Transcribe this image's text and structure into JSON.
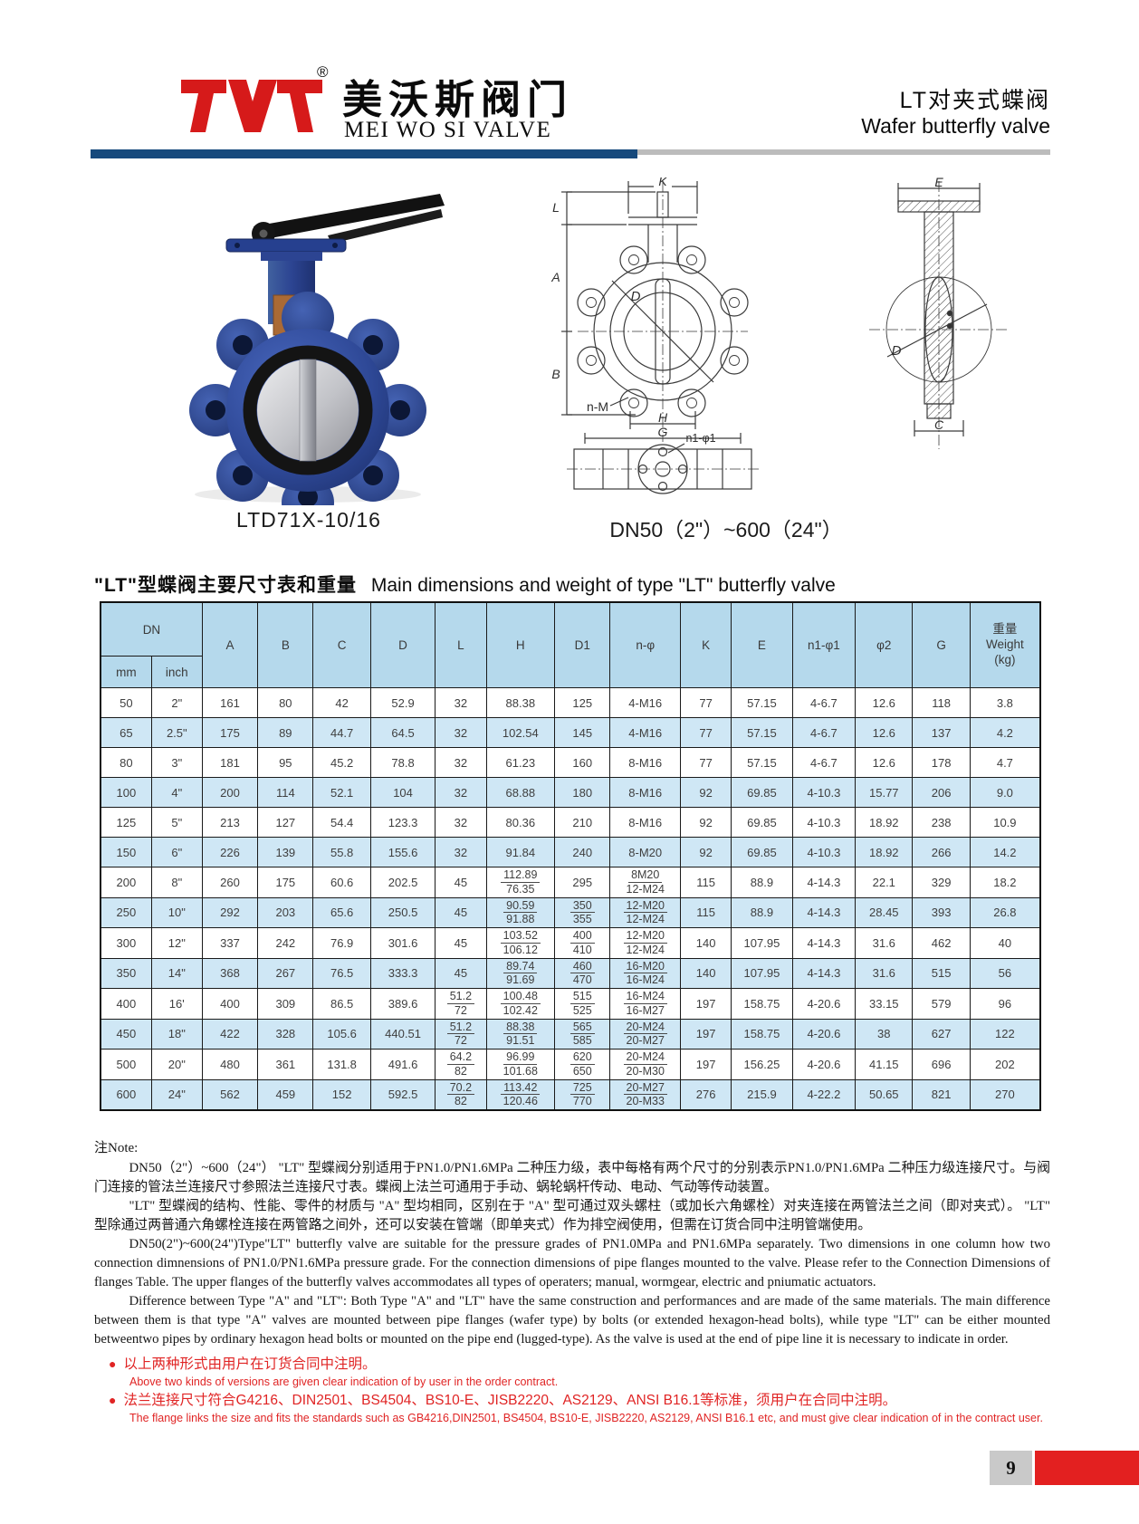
{
  "header": {
    "logo_reg": "®",
    "logo_cn": "美沃斯阀门",
    "logo_en": "MEI WO SI VALVE",
    "product_cn": "LT对夹式蝶阀",
    "product_en": "Wafer butterfly valve",
    "accent_blue": "#16497c",
    "accent_red": "#d61a1a"
  },
  "figures": {
    "photo_caption": "LTD71X-10/16",
    "drawing_caption": "DN50（2\"）~600（24\"）",
    "drawing_labels": {
      "K": "K",
      "L": "L",
      "A": "A",
      "B": "B",
      "D_front": "D",
      "nM": "n-M",
      "H": "H",
      "G": "G",
      "n1phi1": "n1-φ1",
      "E": "E",
      "D_side": "D",
      "C": "C"
    }
  },
  "table": {
    "title_cn": "\"LT\"型蝶阀主要尺寸表和重量",
    "title_en": "Main dimensions and weight of  type \"LT\" butterfly valve",
    "dn_label": "DN",
    "sub_columns": [
      "mm",
      "inch"
    ],
    "columns": [
      "A",
      "B",
      "C",
      "D",
      "L",
      "H",
      "D1",
      "n-φ",
      "K",
      "E",
      "n1-φ1",
      "φ2",
      "G"
    ],
    "weight_lines": [
      "重量",
      "Weight",
      "(kg)"
    ],
    "rows": [
      [
        "50",
        "2\"",
        "161",
        "80",
        "42",
        "52.9",
        "32",
        "88.38",
        "125",
        "4-M16",
        "77",
        "57.15",
        "4-6.7",
        "12.6",
        "118",
        "3.8"
      ],
      [
        "65",
        "2.5\"",
        "175",
        "89",
        "44.7",
        "64.5",
        "32",
        "102.54",
        "145",
        "4-M16",
        "77",
        "57.15",
        "4-6.7",
        "12.6",
        "137",
        "4.2"
      ],
      [
        "80",
        "3\"",
        "181",
        "95",
        "45.2",
        "78.8",
        "32",
        "61.23",
        "160",
        "8-M16",
        "77",
        "57.15",
        "4-6.7",
        "12.6",
        "178",
        "4.7"
      ],
      [
        "100",
        "4\"",
        "200",
        "114",
        "52.1",
        "104",
        "32",
        "68.88",
        "180",
        "8-M16",
        "92",
        "69.85",
        "4-10.3",
        "15.77",
        "206",
        "9.0"
      ],
      [
        "125",
        "5\"",
        "213",
        "127",
        "54.4",
        "123.3",
        "32",
        "80.36",
        "210",
        "8-M16",
        "92",
        "69.85",
        "4-10.3",
        "18.92",
        "238",
        "10.9"
      ],
      [
        "150",
        "6\"",
        "226",
        "139",
        "55.8",
        "155.6",
        "32",
        "91.84",
        "240",
        "8-M20",
        "92",
        "69.85",
        "4-10.3",
        "18.92",
        "266",
        "14.2"
      ],
      [
        "200",
        "8\"",
        "260",
        "175",
        "60.6",
        "202.5",
        "45",
        [
          "112.89",
          "76.35"
        ],
        "295",
        [
          "8M20",
          "12-M24"
        ],
        "115",
        "88.9",
        "4-14.3",
        "22.1",
        "329",
        "18.2"
      ],
      [
        "250",
        "10\"",
        "292",
        "203",
        "65.6",
        "250.5",
        "45",
        [
          "90.59",
          "91.88"
        ],
        [
          "350",
          "355"
        ],
        [
          "12-M20",
          "12-M24"
        ],
        "115",
        "88.9",
        "4-14.3",
        "28.45",
        "393",
        "26.8"
      ],
      [
        "300",
        "12\"",
        "337",
        "242",
        "76.9",
        "301.6",
        "45",
        [
          "103.52",
          "106.12"
        ],
        [
          "400",
          "410"
        ],
        [
          "12-M20",
          "12-M24"
        ],
        "140",
        "107.95",
        "4-14.3",
        "31.6",
        "462",
        "40"
      ],
      [
        "350",
        "14\"",
        "368",
        "267",
        "76.5",
        "333.3",
        "45",
        [
          "89.74",
          "91.69"
        ],
        [
          "460",
          "470"
        ],
        [
          "16-M20",
          "16-M24"
        ],
        "140",
        "107.95",
        "4-14.3",
        "31.6",
        "515",
        "56"
      ],
      [
        "400",
        "16'",
        "400",
        "309",
        "86.5",
        "389.6",
        [
          "51.2",
          "72"
        ],
        [
          "100.48",
          "102.42"
        ],
        [
          "515",
          "525"
        ],
        [
          "16-M24",
          "16-M27"
        ],
        "197",
        "158.75",
        "4-20.6",
        "33.15",
        "579",
        "96"
      ],
      [
        "450",
        "18\"",
        "422",
        "328",
        "105.6",
        "440.51",
        [
          "51.2",
          "72"
        ],
        [
          "88.38",
          "91.51"
        ],
        [
          "565",
          "585"
        ],
        [
          "20-M24",
          "20-M27"
        ],
        "197",
        "158.75",
        "4-20.6",
        "38",
        "627",
        "122"
      ],
      [
        "500",
        "20\"",
        "480",
        "361",
        "131.8",
        "491.6",
        [
          "64.2",
          "82"
        ],
        [
          "96.99",
          "101.68"
        ],
        [
          "620",
          "650"
        ],
        [
          "20-M24",
          "20-M30"
        ],
        "197",
        "156.25",
        "4-20.6",
        "41.15",
        "696",
        "202"
      ],
      [
        "600",
        "24\"",
        "562",
        "459",
        "152",
        "592.5",
        [
          "70.2",
          "82"
        ],
        [
          "113.42",
          "120.46"
        ],
        [
          "725",
          "770"
        ],
        [
          "20-M27",
          "20-M33"
        ],
        "276",
        "215.9",
        "4-22.2",
        "50.65",
        "821",
        "270"
      ]
    ]
  },
  "notes": {
    "label": "注Note:",
    "p1_cn": "DN50（2\"）~600（24\"） \"LT\" 型蝶阀分别适用于PN1.0/PN1.6MPa 二种压力级，表中每格有两个尺寸的分别表示PN1.0/PN1.6MPa 二种压力级连接尺寸。与阀门连接的管法兰连接尺寸参照法兰连接尺寸表。蝶阀上法兰可通用于手动、蜗轮蜗杆传动、电动、气动等传动装置。",
    "p2_cn": "\"LT\" 型蝶阀的结构、性能、零件的材质与 \"A\" 型均相同，区别在于 \"A\" 型可通过双头螺柱（或加长六角螺栓）对夹连接在两管法兰之间（即对夹式）。 \"LT\" 型除通过两普通六角螺栓连接在两管路之间外，还可以安装在管端（即单夹式）作为排空阀使用，但需在订货合同中注明管端使用。",
    "p3_en": "DN50(2\")~600(24\")Type\"LT\" butterfly valve are suitable for the pressure grades of  PN1.0MPa  and PN1.6MPa  separately.  Two dimensions  in one column how two connection dimnensions of  PN1.0/PN1.6MPa  pressure grade. For the connection dimensions of pipe  flanges mounted to the valve.  Please refer to the Connection Dimensions of flanges Table.  The upper flanges of the butterfly valves accommodates all types of operaters;  manual, wormgear, electric and pniumatic actuators.",
    "p4_en": "Difference  between  Type \"A\" and \"LT\":  Both Type \"A\"  and  \"LT\"  have the same construction and performances and are made of  the  same materials. The main difference between them is that type \"A\" valves are mounted between pipe flanges  (wafer type)  by bolts (or extended  hexagon-head  bolts), while type \"LT\"  can be  either mounted betweentwo pipes by ordinary hexagon head bolts or mounted on the pipe end (lugged-type). As the valve is used at  the end of pipe line  it is necessary to indicate in order."
  },
  "bullets": [
    {
      "dot": "●",
      "cn": "以上两种形式由用户在订货合同中注明。",
      "en": "Above two kinds of versions are given clear indication of by user in the order contract."
    },
    {
      "dot": "●",
      "cn": "法兰连接尺寸符合G4216、DIN2501、BS4504、BS10-E、JISB2220、AS2129、ANSI B16.1等标准，须用户在合同中注明。",
      "en": "The flange links the size and fits the standards such as GB4216,DIN2501, BS4504, BS10-E, JISB2220, AS2129, ANSI B16.1 etc, and must give clear indication of in the contract user."
    }
  ],
  "footer": {
    "page_number": "9"
  }
}
